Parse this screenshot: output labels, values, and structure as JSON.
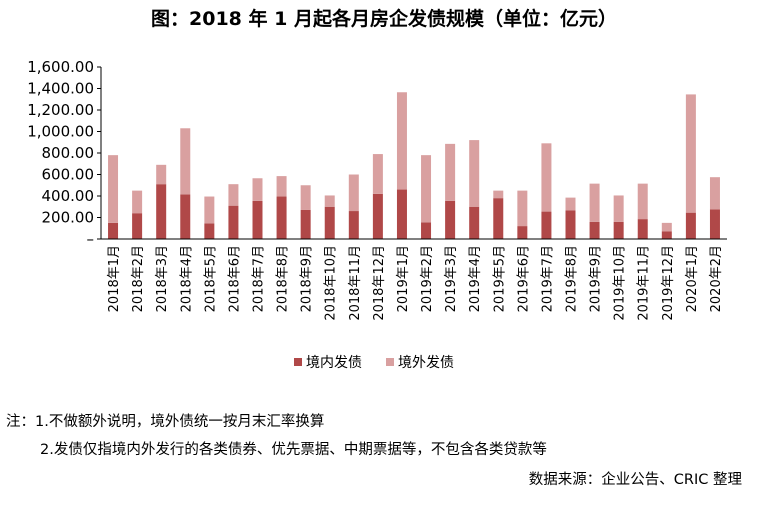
{
  "chart_data": {
    "type": "bar",
    "stacked": true,
    "title": "图：2018 年 1 月起各月房企发债规模（单位：亿元）",
    "xlabel": "",
    "ylabel": "",
    "ylim": [
      0,
      1600
    ],
    "yticks": [
      "–",
      "200.00",
      "400.00",
      "600.00",
      "800.00",
      "1,000.00",
      "1,200.00",
      "1,400.00",
      "1,600.00"
    ],
    "ytick_values": [
      0,
      200,
      400,
      600,
      800,
      1000,
      1200,
      1400,
      1600
    ],
    "categories": [
      "2018年1月",
      "2018年2月",
      "2018年3月",
      "2018年4月",
      "2018年5月",
      "2018年6月",
      "2018年7月",
      "2018年8月",
      "2018年9月",
      "2018年10月",
      "2018年11月",
      "2018年12月",
      "2019年1月",
      "2019年2月",
      "2019年3月",
      "2019年4月",
      "2019年5月",
      "2019年6月",
      "2019年7月",
      "2019年8月",
      "2019年9月",
      "2019年10月",
      "2019年11月",
      "2019年12月",
      "2020年1月",
      "2020年2月"
    ],
    "series": [
      {
        "name": "境内发债",
        "color": "#b04848",
        "values": [
          150,
          240,
          510,
          415,
          145,
          310,
          355,
          395,
          270,
          300,
          260,
          420,
          460,
          155,
          355,
          300,
          380,
          120,
          255,
          265,
          160,
          160,
          185,
          70,
          245,
          275
        ]
      },
      {
        "name": "境外发债",
        "color": "#d9a0a0",
        "values": [
          630,
          210,
          180,
          615,
          250,
          200,
          210,
          190,
          230,
          105,
          340,
          370,
          905,
          625,
          530,
          620,
          70,
          330,
          635,
          120,
          355,
          245,
          330,
          80,
          1100,
          300
        ]
      }
    ],
    "legend_position": "bottom"
  },
  "notes": {
    "line1": "注：1.不做额外说明，境外债统一按月末汇率换算",
    "line2": "2.发债仅指境内外发行的各类债券、优先票据、中期票据等，不包含各类贷款等"
  },
  "source": "数据来源：企业公告、CRIC 整理"
}
